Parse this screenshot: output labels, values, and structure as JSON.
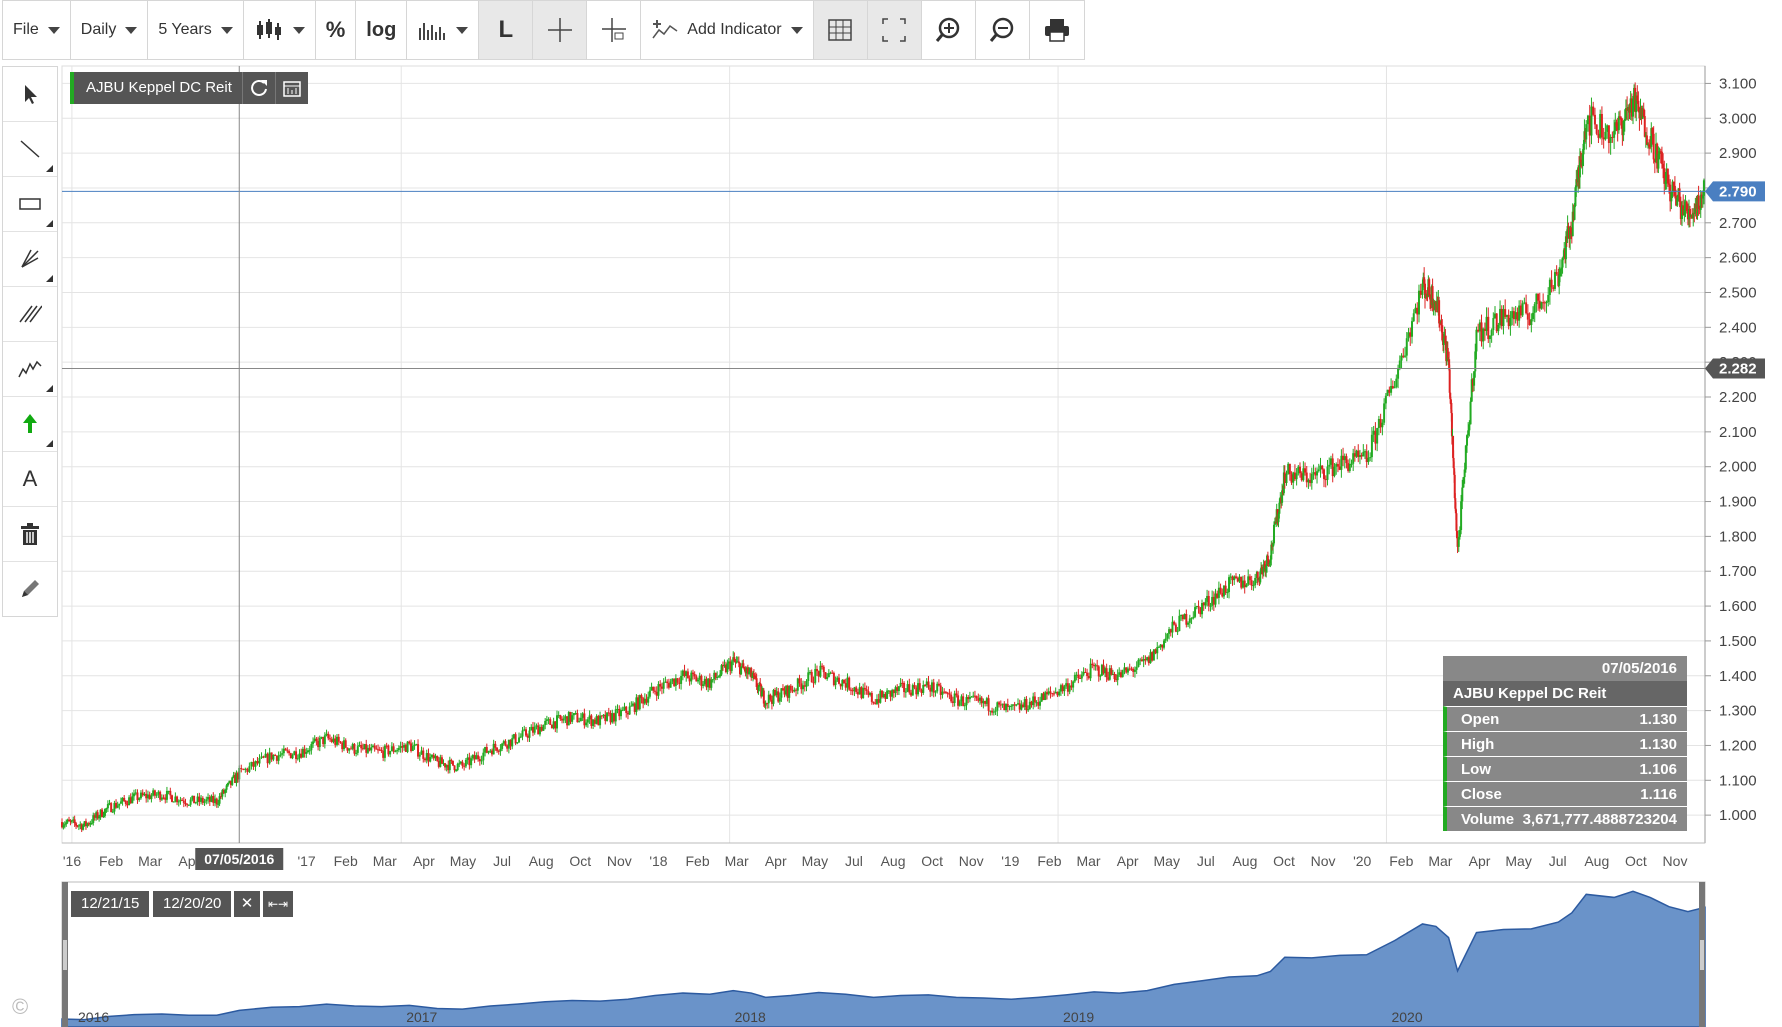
{
  "toolbar": {
    "file": "File",
    "interval": "Daily",
    "range": "5 Years",
    "percent": "%",
    "log": "log",
    "line_tool": "L",
    "add_indicator": "Add Indicator"
  },
  "legend": {
    "name": "AJBU Keppel DC Reit"
  },
  "crosshair": {
    "date_label": "07/05/2016",
    "price_label": "2.282",
    "price": 2.282,
    "date_t": 0.36
  },
  "last_price": {
    "label": "2.790",
    "value": 2.79
  },
  "info_box": {
    "date": "07/05/2016",
    "name": "AJBU Keppel DC Reit",
    "rows": [
      {
        "label": "Open",
        "value": "1.130"
      },
      {
        "label": "High",
        "value": "1.130"
      },
      {
        "label": "Low",
        "value": "1.106"
      },
      {
        "label": "Close",
        "value": "1.116"
      },
      {
        "label": "Volume",
        "value": "3,671,777.4888723204"
      }
    ]
  },
  "range_selector": {
    "start": "12/21/15",
    "end": "12/20/20"
  },
  "copyright": "©",
  "colors": {
    "up": "#22aa22",
    "down": "#dd2222",
    "area": "#6a93c9",
    "grid": "#e4e4e4",
    "last": "#4a7fc1"
  },
  "chart_data": {
    "type": "line",
    "style": "candlestick",
    "series": [
      {
        "x": [
          "2015-12-21",
          "2016-01-15",
          "2016-02-10",
          "2016-03-10",
          "2016-04-10",
          "2016-05-10",
          "2016-06-10",
          "2016-07-05",
          "2016-08-10",
          "2016-09-10",
          "2016-10-10",
          "2016-11-10",
          "2016-12-10",
          "2017-01-10",
          "2017-02-10",
          "2017-03-10",
          "2017-04-10",
          "2017-05-10",
          "2017-06-10",
          "2017-07-10",
          "2017-08-10",
          "2017-09-10",
          "2017-10-10",
          "2017-11-10",
          "2017-12-10",
          "2018-01-05",
          "2018-01-25",
          "2018-02-10",
          "2018-03-10",
          "2018-04-10",
          "2018-05-10",
          "2018-06-10",
          "2018-07-10",
          "2018-08-10",
          "2018-09-10",
          "2018-10-10",
          "2018-11-10",
          "2018-12-10",
          "2019-01-10",
          "2019-02-10",
          "2019-03-10",
          "2019-04-10",
          "2019-05-10",
          "2019-06-10",
          "2019-07-10",
          "2019-08-10",
          "2019-08-25",
          "2019-09-10",
          "2019-10-10",
          "2019-11-10",
          "2019-12-10",
          "2020-01-10",
          "2020-02-10",
          "2020-02-25",
          "2020-03-10",
          "2020-03-20",
          "2020-04-10",
          "2020-05-10",
          "2020-06-10",
          "2020-07-10",
          "2020-07-25",
          "2020-08-10",
          "2020-09-10",
          "2020-10-01",
          "2020-10-20",
          "2020-11-10",
          "2020-12-01",
          "2020-12-20"
        ],
        "values": [
          0.98,
          0.97,
          1.02,
          1.05,
          1.06,
          1.04,
          1.04,
          1.12,
          1.17,
          1.18,
          1.22,
          1.19,
          1.18,
          1.2,
          1.15,
          1.14,
          1.19,
          1.22,
          1.26,
          1.28,
          1.27,
          1.3,
          1.36,
          1.4,
          1.38,
          1.44,
          1.4,
          1.33,
          1.36,
          1.41,
          1.38,
          1.33,
          1.36,
          1.37,
          1.33,
          1.32,
          1.3,
          1.33,
          1.37,
          1.42,
          1.4,
          1.44,
          1.54,
          1.6,
          1.66,
          1.68,
          1.75,
          1.98,
          1.97,
          2.01,
          2.02,
          2.25,
          2.52,
          2.48,
          2.3,
          1.76,
          2.38,
          2.43,
          2.44,
          2.55,
          2.7,
          3.0,
          2.95,
          3.05,
          2.95,
          2.8,
          2.72,
          2.79
        ]
      }
    ],
    "x_ticks": [
      "'16",
      "Feb",
      "Mar",
      "Apr",
      "Oct",
      "Nov",
      "'17",
      "Feb",
      "Mar",
      "Apr",
      "May",
      "Jul",
      "Aug",
      "Oct",
      "Nov",
      "'18",
      "Feb",
      "Mar",
      "Apr",
      "May",
      "Jul",
      "Aug",
      "Oct",
      "Nov",
      "'19",
      "Feb",
      "Mar",
      "Apr",
      "May",
      "Jul",
      "Aug",
      "Oct",
      "Nov",
      "'20",
      "Feb",
      "Mar",
      "Apr",
      "May",
      "Jul",
      "Aug",
      "Oct",
      "Nov"
    ],
    "y_ticks": [
      "1.000",
      "1.100",
      "1.200",
      "1.300",
      "1.400",
      "1.500",
      "1.600",
      "1.700",
      "1.800",
      "1.900",
      "2.000",
      "2.100",
      "2.200",
      "2.300",
      "2.400",
      "2.500",
      "2.600",
      "2.700",
      "2.800",
      "2.900",
      "3.000",
      "3.100"
    ],
    "ylim": [
      0.92,
      3.15
    ],
    "xlim": [
      "2015-12-21",
      "2020-12-20"
    ],
    "navigator_years": [
      "2016",
      "2017",
      "2018",
      "2019",
      "2020"
    ],
    "grid": true
  }
}
